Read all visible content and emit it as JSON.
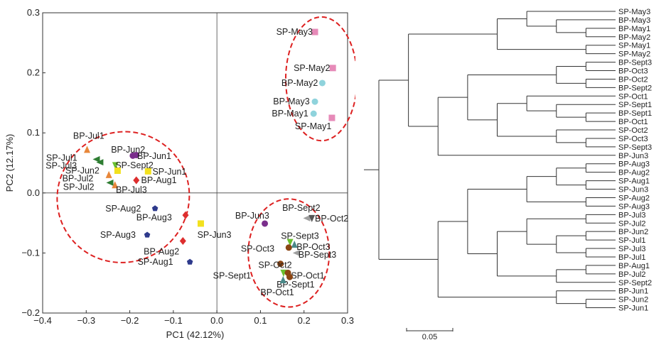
{
  "chart_data": [
    {
      "type": "scatter",
      "xlabel": "PC1 (42.12%)",
      "ylabel": "PC2 (12.17%)",
      "xlim": [
        -0.4,
        0.3
      ],
      "ylim": [
        -0.2,
        0.3
      ],
      "xticks": [
        "−0.4",
        "−0.3",
        "−0.2",
        "−0.1",
        "0.0",
        "0.1",
        "0.2",
        "0.3"
      ],
      "yticks": [
        "−0.2",
        "−0.1",
        "0.0",
        "0.1",
        "0.2",
        "0.3"
      ],
      "grid": false,
      "zero_lines": true,
      "points": [
        {
          "label": "SP-May3",
          "x": 0.225,
          "y": 0.268,
          "marker": "square",
          "color": "#e68ab8",
          "lx": 0.22,
          "ly": 0.268,
          "anchor": "end"
        },
        {
          "label": "SP-May2",
          "x": 0.266,
          "y": 0.208,
          "marker": "square",
          "color": "#e68ab8",
          "lx": 0.26,
          "ly": 0.208,
          "anchor": "end"
        },
        {
          "label": "BP-May2",
          "x": 0.242,
          "y": 0.183,
          "marker": "circle",
          "color": "#8fd3dc",
          "lx": 0.232,
          "ly": 0.183,
          "anchor": "end"
        },
        {
          "label": "BP-May3",
          "x": 0.225,
          "y": 0.152,
          "marker": "circle",
          "color": "#8fd3dc",
          "lx": 0.213,
          "ly": 0.152,
          "anchor": "end"
        },
        {
          "label": "BP-May1",
          "x": 0.222,
          "y": 0.132,
          "marker": "circle",
          "color": "#8fd3dc",
          "lx": 0.21,
          "ly": 0.132,
          "anchor": "end"
        },
        {
          "label": "SP-May1",
          "x": 0.264,
          "y": 0.125,
          "marker": "square",
          "color": "#e68ab8",
          "lx": 0.263,
          "ly": 0.111,
          "anchor": "end"
        },
        {
          "label": "BP-Jul1",
          "x": -0.298,
          "y": 0.072,
          "marker": "triangle",
          "color": "#e8873a",
          "lx": -0.33,
          "ly": 0.095,
          "anchor": "start"
        },
        {
          "label": "BP-Jun2",
          "x": -0.193,
          "y": 0.062,
          "marker": "circle",
          "color": "#7a2e8c",
          "lx": -0.243,
          "ly": 0.072,
          "anchor": "start"
        },
        {
          "label": "BP-Jun1",
          "x": -0.185,
          "y": 0.063,
          "marker": "circle",
          "color": "#7a2e8c",
          "lx": -0.183,
          "ly": 0.061,
          "anchor": "start"
        },
        {
          "label": "SP-Jul1",
          "x": -0.276,
          "y": 0.056,
          "marker": "triangle-left",
          "color": "#2e7d32",
          "lx": -0.392,
          "ly": 0.058,
          "anchor": "start"
        },
        {
          "label": "SP-Jul3",
          "x": -0.268,
          "y": 0.051,
          "marker": "triangle-left",
          "color": "#2e7d32",
          "lx": -0.393,
          "ly": 0.045,
          "anchor": "start"
        },
        {
          "label": "SP-Sept2",
          "x": -0.233,
          "y": 0.046,
          "marker": "triangle-down",
          "color": "#6abf2e",
          "lx": -0.233,
          "ly": 0.046,
          "anchor": "start"
        },
        {
          "label": "SP-Jun2",
          "x": -0.228,
          "y": 0.037,
          "marker": "square",
          "color": "#f2e11e",
          "lx": -0.348,
          "ly": 0.037,
          "anchor": "start"
        },
        {
          "label": "SP-Jun1",
          "x": -0.158,
          "y": 0.036,
          "marker": "square",
          "color": "#f2e11e",
          "lx": -0.148,
          "ly": 0.035,
          "anchor": "start"
        },
        {
          "label": "BP-Jul2",
          "x": -0.248,
          "y": 0.03,
          "marker": "triangle",
          "color": "#e8873a",
          "lx": -0.355,
          "ly": 0.024,
          "anchor": "start"
        },
        {
          "label": "BP-Aug1",
          "x": -0.185,
          "y": 0.021,
          "marker": "diamond",
          "color": "#dd2e2e",
          "lx": -0.174,
          "ly": 0.021,
          "anchor": "start"
        },
        {
          "label": "SP-Jul2",
          "x": -0.245,
          "y": 0.017,
          "marker": "triangle-left",
          "color": "#2e7d32",
          "lx": -0.353,
          "ly": 0.01,
          "anchor": "start"
        },
        {
          "label": "BP-Jul3",
          "x": -0.234,
          "y": 0.013,
          "marker": "triangle",
          "color": "#e8873a",
          "lx": -0.232,
          "ly": 0.005,
          "anchor": "start"
        },
        {
          "label": "SP-Aug2",
          "x": -0.142,
          "y": -0.026,
          "marker": "pentagon",
          "color": "#2e3a8c",
          "lx": -0.256,
          "ly": -0.026,
          "anchor": "start"
        },
        {
          "label": "BP-Aug3",
          "x": -0.072,
          "y": -0.037,
          "marker": "diamond",
          "color": "#dd2e2e",
          "lx": -0.185,
          "ly": -0.041,
          "anchor": "start"
        },
        {
          "label": "SP-Jun3",
          "x": -0.037,
          "y": -0.051,
          "marker": "square",
          "color": "#f2e11e",
          "lx": -0.045,
          "ly": -0.07,
          "anchor": "start"
        },
        {
          "label": "SP-Aug3",
          "x": -0.16,
          "y": -0.07,
          "marker": "pentagon",
          "color": "#2e3a8c",
          "lx": -0.268,
          "ly": -0.07,
          "anchor": "start"
        },
        {
          "label": "BP-Aug2",
          "x": -0.078,
          "y": -0.08,
          "marker": "diamond",
          "color": "#dd2e2e",
          "lx": -0.168,
          "ly": -0.098,
          "anchor": "start"
        },
        {
          "label": "SP-Aug1",
          "x": -0.062,
          "y": -0.115,
          "marker": "pentagon",
          "color": "#2e3a8c",
          "lx": -0.182,
          "ly": -0.115,
          "anchor": "start"
        },
        {
          "label": "BP-Jun3",
          "x": 0.11,
          "y": -0.051,
          "marker": "circle",
          "color": "#7a2e8c",
          "lx": 0.042,
          "ly": -0.038,
          "anchor": "start"
        },
        {
          "label": "BP-Sept2",
          "x": 0.207,
          "y": -0.042,
          "marker": "triangle-left",
          "color": "#9e9e9e",
          "lx": 0.15,
          "ly": -0.025,
          "anchor": "start"
        },
        {
          "label": "BP-Oct2",
          "x": 0.218,
          "y": -0.042,
          "marker": "triangle-down",
          "color": "#555555",
          "lx": 0.225,
          "ly": -0.043,
          "anchor": "start"
        },
        {
          "label": "SP-Sept3",
          "x": 0.168,
          "y": -0.082,
          "marker": "triangle-down",
          "color": "#6abf2e",
          "lx": 0.147,
          "ly": -0.072,
          "anchor": "start"
        },
        {
          "label": "BP-Oct3",
          "x": 0.178,
          "y": -0.086,
          "marker": "triangle",
          "color": "#4a8a8a",
          "lx": 0.183,
          "ly": -0.09,
          "anchor": "start"
        },
        {
          "label": "SP-Oct3",
          "x": 0.165,
          "y": -0.091,
          "marker": "circle",
          "color": "#8b4513",
          "lx": 0.055,
          "ly": -0.093,
          "anchor": "start"
        },
        {
          "label": "BP-Sept3",
          "x": 0.183,
          "y": -0.1,
          "marker": "triangle-left",
          "color": "#9e9e9e",
          "lx": 0.187,
          "ly": -0.103,
          "anchor": "start"
        },
        {
          "label": "SP-Oct2",
          "x": 0.146,
          "y": -0.118,
          "marker": "circle",
          "color": "#8b4513",
          "lx": 0.095,
          "ly": -0.12,
          "anchor": "start"
        },
        {
          "label": "SP-Sept1",
          "x": 0.153,
          "y": -0.133,
          "marker": "triangle-down",
          "color": "#6abf2e",
          "lx": -0.009,
          "ly": -0.138,
          "anchor": "start"
        },
        {
          "label": "SP-Oct1",
          "x": 0.163,
          "y": -0.133,
          "marker": "circle",
          "color": "#8b4513",
          "lx": 0.17,
          "ly": -0.138,
          "anchor": "start"
        },
        {
          "label": "BP-Sept1",
          "x": 0.167,
          "y": -0.14,
          "marker": "circle",
          "color": "#8b4513",
          "lx": 0.137,
          "ly": -0.153,
          "anchor": "start"
        },
        {
          "label": "BP-Oct1",
          "x": 0.152,
          "y": -0.145,
          "marker": "triangle",
          "color": "#4a8a8a",
          "lx": 0.1,
          "ly": -0.166,
          "anchor": "start"
        }
      ],
      "ellipses": [
        {
          "cx": 0.24,
          "cy": 0.19,
          "rx": 0.082,
          "ry": 0.103,
          "rot": 0,
          "color": "#dd2020"
        },
        {
          "cx": -0.215,
          "cy": -0.007,
          "rx": 0.153,
          "ry": 0.108,
          "rot": -35,
          "color": "#dd2020"
        },
        {
          "cx": 0.165,
          "cy": -0.1,
          "rx": 0.093,
          "ry": 0.09,
          "rot": 0,
          "color": "#dd2020"
        }
      ]
    },
    {
      "type": "dendrogram",
      "scale_bar_label": "0.05",
      "scale_bar_length": 0.05,
      "tree": [
        [
          [
            [
              "SP-May3",
              [
                "BP-May3",
                [
                  "BP-May1",
                  "BP-May2"
                ]
              ]
            ],
            [
              "SP-May1",
              "SP-May2"
            ]
          ],
          [
            [
              [
                [
                  "BP-Sept3",
                  "BP-Oct3"
                ],
                [
                  "BP-Oct2",
                  "BP-Sept2"
                ]
              ],
              [
                [
                  "SP-Oct1",
                  [
                    "SP-Sept1",
                    [
                      "BP-Sept1",
                      "BP-Oct1"
                    ]
                  ]
                ],
                [
                  "SP-Oct2",
                  [
                    "SP-Oct3",
                    "SP-Sept3"
                  ]
                ]
              ]
            ],
            "BP-Jun3"
          ]
        ],
        [
          [
            [
              [
                [
                  "BP-Aug3",
                  "BP-Aug2"
                ],
                [
                  "SP-Aug1",
                  "SP-Jun3"
                ]
              ],
              [
                "SP-Aug2",
                "SP-Aug3"
              ]
            ],
            [
              [
                [
                  "BP-Jul3",
                  "SP-Jul2"
                ],
                [
                  [
                    "BP-Jun2",
                    "SP-Jul1"
                  ],
                  [
                    "SP-Jul3",
                    "BP-Jul1"
                  ]
                ]
              ],
              [
                [
                  "BP-Aug1",
                  "BP-Jul2"
                ],
                "SP-Sept2"
              ]
            ]
          ],
          [
            "BP-Jun1",
            [
              "SP-Jun2",
              "SP-Jun1"
            ]
          ]
        ]
      ],
      "leaves": [
        "SP-May3",
        "BP-May3",
        "BP-May1",
        "BP-May2",
        "SP-May1",
        "SP-May2",
        "BP-Sept3",
        "BP-Oct3",
        "BP-Oct2",
        "BP-Sept2",
        "SP-Oct1",
        "SP-Sept1",
        "BP-Sept1",
        "BP-Oct1",
        "SP-Oct2",
        "SP-Oct3",
        "SP-Sept3",
        "BP-Jun3",
        "BP-Aug3",
        "BP-Aug2",
        "SP-Aug1",
        "SP-Jun3",
        "SP-Aug2",
        "SP-Aug3",
        "BP-Jul3",
        "SP-Jul2",
        "BP-Jun2",
        "SP-Jul1",
        "SP-Jul3",
        "BP-Jul1",
        "BP-Aug1",
        "BP-Jul2",
        "SP-Sept2",
        "BP-Jun1",
        "SP-Jun2",
        "SP-Jun1"
      ]
    }
  ]
}
